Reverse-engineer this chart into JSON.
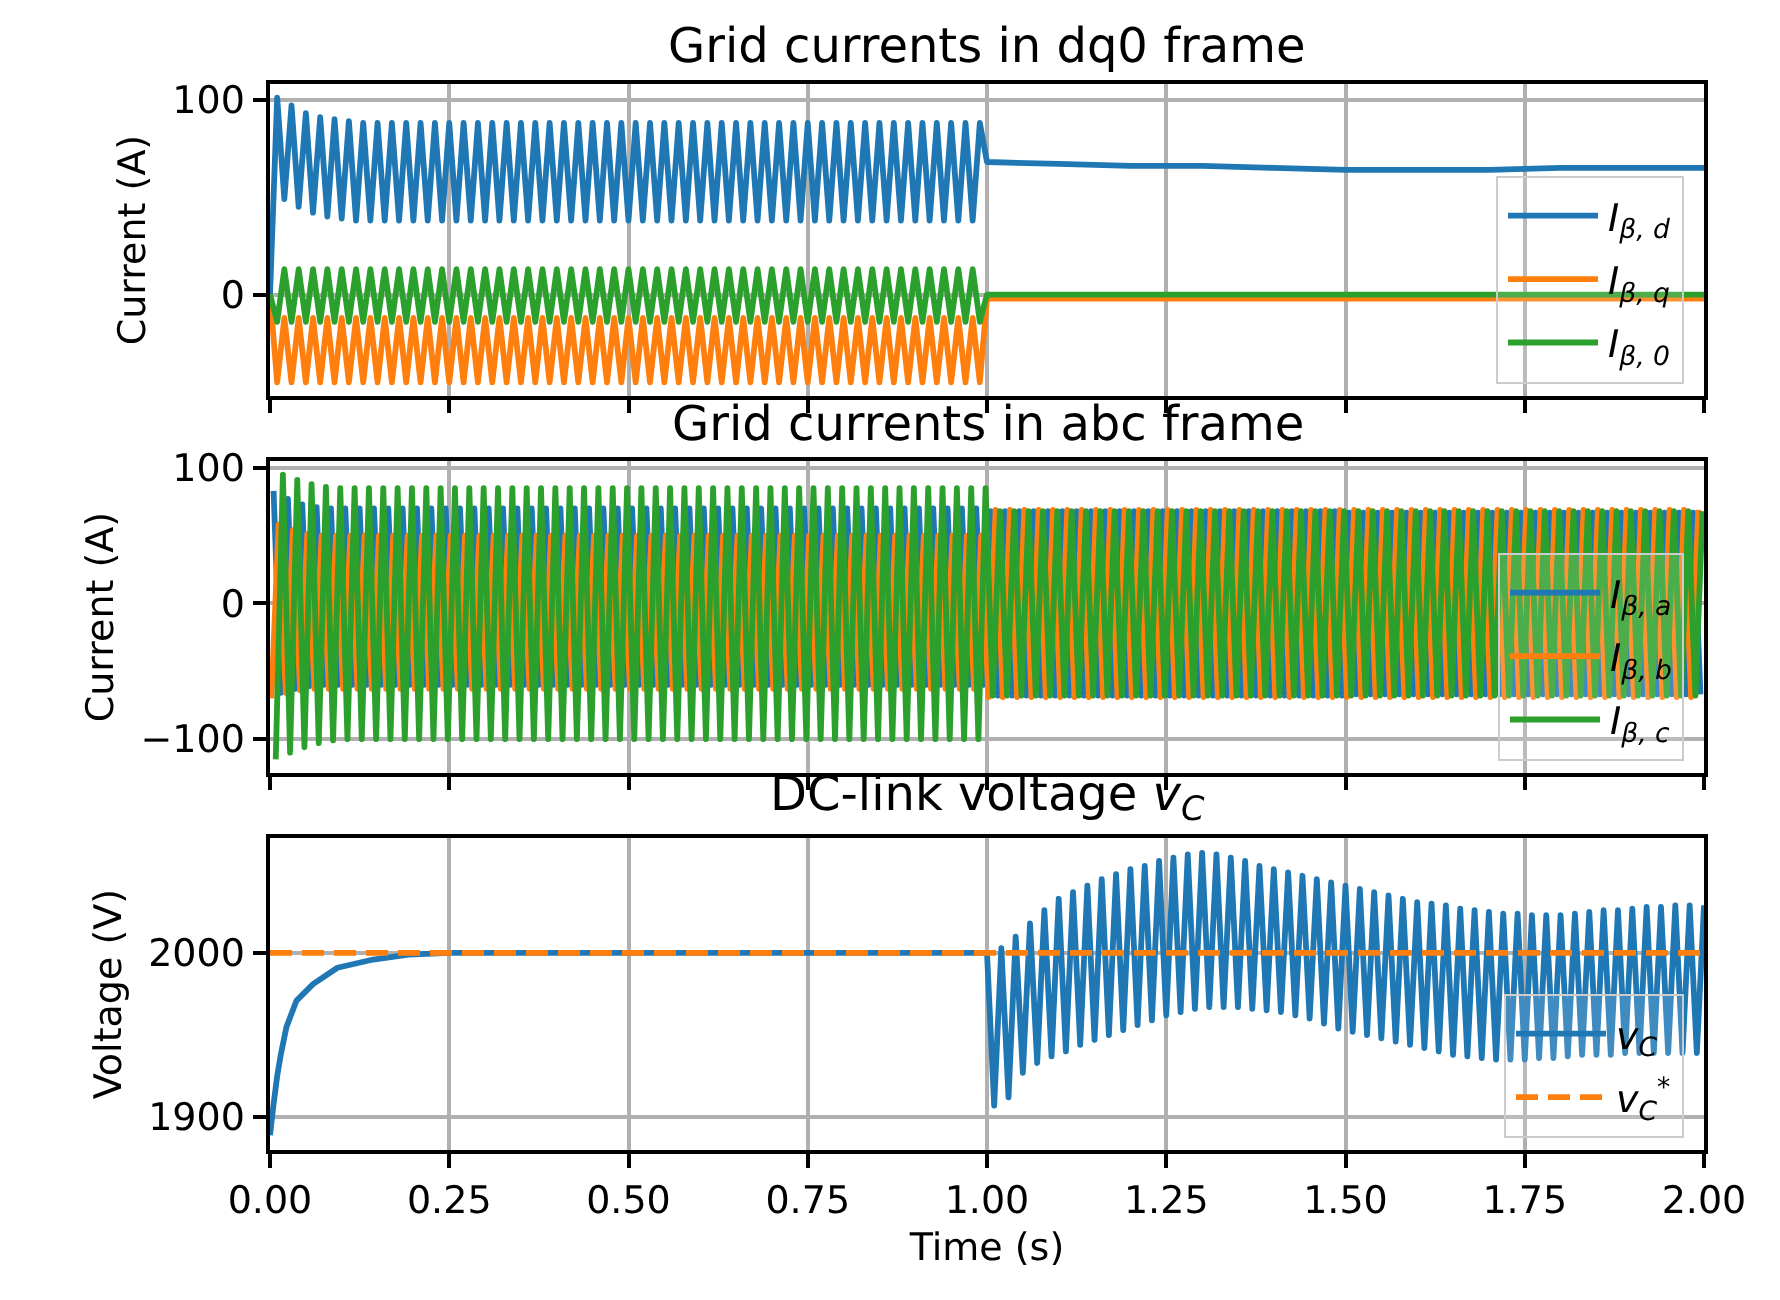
{
  "chart_data": [
    {
      "type": "line",
      "title": "Grid currents in dq0 frame",
      "ylabel": "Current (A)",
      "x": [
        0,
        0.01,
        0.02,
        0.03,
        0.04,
        0.05,
        0.06,
        0.07,
        0.08,
        0.09,
        0.1,
        0.11,
        0.12,
        0.13,
        0.14,
        0.15,
        0.16,
        0.17,
        0.18,
        0.19,
        0.2,
        0.21,
        0.22,
        0.23,
        0.24,
        0.25,
        0.26,
        0.27,
        0.28,
        0.29,
        0.3,
        0.31,
        0.32,
        0.33,
        0.34,
        0.35,
        0.36,
        0.37,
        0.38,
        0.39,
        0.4,
        0.41,
        0.42,
        0.43,
        0.44,
        0.45,
        0.46,
        0.47,
        0.48,
        0.49,
        0.5,
        0.51,
        0.52,
        0.53,
        0.54,
        0.55,
        0.56,
        0.57,
        0.58,
        0.59,
        0.6,
        0.61,
        0.62,
        0.63,
        0.64,
        0.65,
        0.66,
        0.67,
        0.68,
        0.69,
        0.7,
        0.71,
        0.72,
        0.73,
        0.74,
        0.75,
        0.76,
        0.77,
        0.78,
        0.79,
        0.8,
        0.81,
        0.82,
        0.83,
        0.84,
        0.85,
        0.86,
        0.87,
        0.88,
        0.89,
        0.9,
        0.91,
        0.92,
        0.93,
        0.94,
        0.95,
        0.96,
        0.97,
        0.98,
        0.99,
        1.0,
        1.1,
        1.2,
        1.3,
        1.4,
        1.5,
        1.6,
        1.7,
        1.8,
        1.9,
        2.0
      ],
      "series": [
        {
          "name": "I$_{β, d}$",
          "color": "#1f77b4",
          "values": [
            0,
            101,
            49,
            97,
            45,
            93,
            42,
            91,
            40,
            90,
            39,
            89,
            38,
            88,
            38,
            88,
            38,
            88,
            38,
            88,
            38,
            88,
            38,
            88,
            38,
            88,
            38,
            88,
            38,
            88,
            38,
            88,
            38,
            88,
            38,
            88,
            38,
            88,
            38,
            88,
            38,
            88,
            38,
            88,
            38,
            88,
            38,
            88,
            38,
            88,
            38,
            88,
            38,
            88,
            38,
            88,
            38,
            88,
            38,
            88,
            38,
            88,
            38,
            88,
            38,
            88,
            38,
            88,
            38,
            88,
            38,
            88,
            38,
            88,
            38,
            88,
            38,
            88,
            38,
            88,
            38,
            88,
            38,
            88,
            38,
            88,
            38,
            88,
            38,
            88,
            38,
            88,
            38,
            88,
            38,
            88,
            38,
            88,
            38,
            88,
            68,
            67,
            66,
            66,
            65,
            64,
            64,
            64,
            65,
            65,
            65
          ]
        },
        {
          "name": "I$_{β, q}$",
          "color": "#ff7f0e",
          "values": [
            0,
            -45,
            -12,
            -45,
            -12,
            -45,
            -12,
            -45,
            -12,
            -45,
            -12,
            -45,
            -12,
            -45,
            -12,
            -45,
            -12,
            -45,
            -12,
            -45,
            -12,
            -45,
            -12,
            -45,
            -12,
            -45,
            -12,
            -45,
            -12,
            -45,
            -12,
            -45,
            -12,
            -45,
            -12,
            -45,
            -12,
            -45,
            -12,
            -45,
            -12,
            -45,
            -12,
            -45,
            -12,
            -45,
            -12,
            -45,
            -12,
            -45,
            -12,
            -45,
            -12,
            -45,
            -12,
            -45,
            -12,
            -45,
            -12,
            -45,
            -12,
            -45,
            -12,
            -45,
            -12,
            -45,
            -12,
            -45,
            -12,
            -45,
            -12,
            -45,
            -12,
            -45,
            -12,
            -45,
            -12,
            -45,
            -12,
            -45,
            -12,
            -45,
            -12,
            -45,
            -12,
            -45,
            -12,
            -45,
            -12,
            -45,
            -12,
            -45,
            -12,
            -45,
            -12,
            -45,
            -12,
            -45,
            -12,
            -45,
            -2,
            -2,
            -2,
            -2,
            -2,
            -2,
            -2,
            -2,
            -2,
            -2,
            -2
          ]
        },
        {
          "name": "I$_{β, 0}$",
          "color": "#2ca02c",
          "values": [
            0,
            -14,
            13,
            -14,
            13,
            -14,
            13,
            -14,
            13,
            -14,
            13,
            -14,
            13,
            -14,
            13,
            -14,
            13,
            -14,
            13,
            -14,
            13,
            -14,
            13,
            -14,
            13,
            -14,
            13,
            -14,
            13,
            -14,
            13,
            -14,
            13,
            -14,
            13,
            -14,
            13,
            -14,
            13,
            -14,
            13,
            -14,
            13,
            -14,
            13,
            -14,
            13,
            -14,
            13,
            -14,
            13,
            -14,
            13,
            -14,
            13,
            -14,
            13,
            -14,
            13,
            -14,
            13,
            -14,
            13,
            -14,
            13,
            -14,
            13,
            -14,
            13,
            -14,
            13,
            -14,
            13,
            -14,
            13,
            -14,
            13,
            -14,
            13,
            -14,
            13,
            -14,
            13,
            -14,
            13,
            -14,
            13,
            -14,
            13,
            -14,
            13,
            -14,
            13,
            -14,
            13,
            -14,
            13,
            -14,
            13,
            -14,
            0,
            0,
            0,
            0,
            0,
            0,
            0,
            0,
            0,
            0,
            0
          ]
        }
      ],
      "xlim": [
        0,
        2
      ],
      "ylim": [
        -52,
        108
      ],
      "xticks": [
        0,
        0.25,
        0.5,
        0.75,
        1,
        1.25,
        1.5,
        1.75,
        2
      ],
      "yticks": [
        0,
        100
      ],
      "grid": true,
      "legend": "bottom right",
      "tick_labels": "y"
    },
    {
      "type": "line",
      "title": "Grid currents in abc frame",
      "ylabel": "Current (A)",
      "series": [
        {
          "name": "I$_{β, a}$",
          "color": "#1f77b4",
          "x": [
            0.005,
            0.015,
            0.025,
            0.035,
            0.045,
            0.055,
            0.065,
            0.075,
            0.085,
            0.095,
            0.105,
            0.115,
            0.125,
            0.135,
            0.145,
            0.155,
            0.165,
            0.175,
            0.185,
            0.195,
            0.205,
            0.215,
            0.225,
            0.235,
            0.245,
            0.255,
            0.265,
            0.275,
            0.285,
            0.295,
            0.305,
            0.315,
            0.325,
            0.335,
            0.345,
            0.355,
            0.365,
            0.375,
            0.385,
            0.395,
            0.405,
            0.415,
            0.425,
            0.435,
            0.445,
            0.455,
            0.465,
            0.475,
            0.485,
            0.495,
            0.505,
            0.515,
            0.525,
            0.535,
            0.545,
            0.555,
            0.565,
            0.575,
            0.585,
            0.595,
            0.605,
            0.615,
            0.625,
            0.635,
            0.645,
            0.655,
            0.665,
            0.675,
            0.685,
            0.695,
            0.705,
            0.715,
            0.725,
            0.735,
            0.745,
            0.755,
            0.765,
            0.775,
            0.785,
            0.795,
            0.805,
            0.815,
            0.825,
            0.835,
            0.845,
            0.855,
            0.865,
            0.875,
            0.885,
            0.895,
            0.905,
            0.915,
            0.925,
            0.935,
            0.945,
            0.955,
            0.965,
            0.975,
            0.985,
            0.995,
            1.005,
            1.015,
            1.025,
            1.035,
            1.045,
            1.055,
            1.065,
            1.075,
            1.085,
            1.095,
            1.105,
            1.115,
            1.125,
            1.135,
            1.145,
            1.155,
            1.165,
            1.175,
            1.185,
            1.195,
            1.205,
            1.215,
            1.225,
            1.235,
            1.245,
            1.255,
            1.265,
            1.275,
            1.285,
            1.295,
            1.305,
            1.315,
            1.325,
            1.335,
            1.345,
            1.355,
            1.365,
            1.375,
            1.385,
            1.395,
            1.405,
            1.415,
            1.425,
            1.435,
            1.445,
            1.455,
            1.465,
            1.475,
            1.485,
            1.495,
            1.505,
            1.515,
            1.525,
            1.535,
            1.545,
            1.555,
            1.565,
            1.575,
            1.585,
            1.595,
            1.605,
            1.615,
            1.625,
            1.635,
            1.645,
            1.655,
            1.665,
            1.675,
            1.685,
            1.695,
            1.705,
            1.715,
            1.725,
            1.735,
            1.745,
            1.755,
            1.765,
            1.775,
            1.785,
            1.795,
            1.805,
            1.815,
            1.825,
            1.835,
            1.845,
            1.855,
            1.865,
            1.875,
            1.885,
            1.895,
            1.905,
            1.915,
            1.925,
            1.935,
            1.945,
            1.955,
            1.965,
            1.975,
            1.985,
            1.995
          ],
          "values": [
            83,
            -66,
            77,
            -63,
            73,
            -61,
            71,
            -60,
            70,
            -60,
            70,
            -60,
            70,
            -60,
            70,
            -60,
            70,
            -60,
            70,
            -60,
            70,
            -60,
            70,
            -60,
            70,
            -60,
            70,
            -60,
            70,
            -60,
            70,
            -60,
            70,
            -60,
            70,
            -60,
            70,
            -60,
            70,
            -60,
            70,
            -60,
            70,
            -60,
            70,
            -60,
            70,
            -60,
            70,
            -60,
            70,
            -60,
            70,
            -60,
            70,
            -60,
            70,
            -60,
            70,
            -60,
            70,
            -60,
            70,
            -60,
            70,
            -60,
            70,
            -60,
            70,
            -60,
            70,
            -60,
            70,
            -60,
            70,
            -60,
            70,
            -60,
            70,
            -60,
            70,
            -60,
            70,
            -60,
            70,
            -60,
            70,
            -60,
            70,
            -60,
            70,
            -60,
            70,
            -60,
            70,
            -60,
            70,
            -60,
            70,
            -60,
            68,
            -68,
            68,
            -68,
            68,
            -68,
            68,
            -68,
            68,
            -68,
            68,
            -68,
            68,
            -68,
            68,
            -68,
            68,
            -68,
            68,
            -68,
            68,
            -68,
            68,
            -68,
            68,
            -68,
            68,
            -68,
            68,
            -68,
            68,
            -68,
            68,
            -68,
            68,
            -68,
            68,
            -68,
            68,
            -68,
            68,
            -68,
            68,
            -68,
            68,
            -68,
            68,
            -68,
            68,
            -68,
            67,
            -67,
            67,
            -67,
            67,
            -67,
            67,
            -67,
            67,
            -67,
            67,
            -67,
            67,
            -67,
            67,
            -67,
            67,
            -67,
            67,
            -67,
            67,
            -67,
            67,
            -67,
            67,
            -67,
            67,
            -67,
            67,
            -67,
            67,
            -67,
            67,
            -67,
            67,
            -67,
            67,
            -67,
            67,
            -67,
            67,
            -67,
            67,
            -67,
            67,
            -67,
            67,
            -67,
            67,
            -67
          ]
        },
        {
          "name": "I$_{β, b}$",
          "color": "#ff7f0e",
          "x": [
            0.002,
            0.012,
            0.022,
            0.032,
            0.042,
            0.052,
            0.062,
            0.072,
            0.082,
            0.092,
            0.102,
            0.112,
            0.122,
            0.132,
            0.142,
            0.152,
            0.162,
            0.172,
            0.182,
            0.192,
            0.202,
            0.212,
            0.222,
            0.232,
            0.242,
            0.252,
            0.262,
            0.272,
            0.282,
            0.292,
            0.302,
            0.312,
            0.322,
            0.332,
            0.342,
            0.352,
            0.362,
            0.372,
            0.382,
            0.392,
            0.402,
            0.412,
            0.422,
            0.432,
            0.442,
            0.452,
            0.462,
            0.472,
            0.482,
            0.492,
            0.502,
            0.512,
            0.522,
            0.532,
            0.542,
            0.552,
            0.562,
            0.572,
            0.582,
            0.592,
            0.602,
            0.612,
            0.622,
            0.632,
            0.642,
            0.652,
            0.662,
            0.672,
            0.682,
            0.692,
            0.702,
            0.712,
            0.722,
            0.732,
            0.742,
            0.752,
            0.762,
            0.772,
            0.782,
            0.792,
            0.802,
            0.812,
            0.822,
            0.832,
            0.842,
            0.852,
            0.862,
            0.872,
            0.882,
            0.892,
            0.902,
            0.912,
            0.922,
            0.932,
            0.942,
            0.952,
            0.962,
            0.972,
            0.982,
            0.992,
            1.002,
            1.012,
            1.022,
            1.032,
            1.042,
            1.052,
            1.062,
            1.072,
            1.082,
            1.092,
            1.102,
            1.112,
            1.122,
            1.132,
            1.142,
            1.152,
            1.162,
            1.172,
            1.182,
            1.192,
            1.202,
            1.212,
            1.222,
            1.232,
            1.242,
            1.252,
            1.262,
            1.272,
            1.282,
            1.292,
            1.302,
            1.312,
            1.322,
            1.332,
            1.342,
            1.352,
            1.362,
            1.372,
            1.382,
            1.392,
            1.402,
            1.412,
            1.422,
            1.432,
            1.442,
            1.452,
            1.462,
            1.472,
            1.482,
            1.492,
            1.502,
            1.512,
            1.522,
            1.532,
            1.542,
            1.552,
            1.562,
            1.572,
            1.582,
            1.592,
            1.602,
            1.612,
            1.622,
            1.632,
            1.642,
            1.652,
            1.662,
            1.672,
            1.682,
            1.692,
            1.702,
            1.712,
            1.722,
            1.732,
            1.742,
            1.752,
            1.762,
            1.772,
            1.782,
            1.792,
            1.802,
            1.812,
            1.822,
            1.832,
            1.842,
            1.852,
            1.862,
            1.872,
            1.882,
            1.892,
            1.902,
            1.912,
            1.922,
            1.932,
            1.942,
            1.952,
            1.962,
            1.972,
            1.982,
            1.992
          ],
          "values": [
            -70,
            58,
            -66,
            54,
            -64,
            51,
            -63,
            50,
            -63,
            50,
            -63,
            50,
            -63,
            50,
            -63,
            50,
            -63,
            50,
            -63,
            50,
            -63,
            50,
            -63,
            50,
            -63,
            50,
            -63,
            50,
            -63,
            50,
            -63,
            50,
            -63,
            50,
            -63,
            50,
            -63,
            50,
            -63,
            50,
            -63,
            50,
            -63,
            50,
            -63,
            50,
            -63,
            50,
            -63,
            50,
            -63,
            50,
            -63,
            50,
            -63,
            50,
            -63,
            50,
            -63,
            50,
            -63,
            50,
            -63,
            50,
            -63,
            50,
            -63,
            50,
            -63,
            50,
            -63,
            50,
            -63,
            50,
            -63,
            50,
            -63,
            50,
            -63,
            50,
            -63,
            50,
            -63,
            50,
            -63,
            50,
            -63,
            50,
            -63,
            50,
            -63,
            50,
            -63,
            50,
            -63,
            50,
            -63,
            50,
            -63,
            50,
            -69,
            69,
            -69,
            69,
            -69,
            69,
            -69,
            69,
            -69,
            69,
            -69,
            69,
            -69,
            69,
            -69,
            69,
            -69,
            69,
            -69,
            69,
            -69,
            69,
            -69,
            69,
            -69,
            69,
            -69,
            69,
            -69,
            69,
            -69,
            69,
            -69,
            69,
            -69,
            69,
            -69,
            69,
            -69,
            69,
            -69,
            69,
            -69,
            69,
            -69,
            69,
            -69,
            69,
            -69,
            69,
            -69,
            69,
            -69,
            69,
            -69,
            69,
            -69,
            69,
            -69,
            69,
            -69,
            69,
            -69,
            69,
            -69,
            69,
            -69,
            69,
            -69,
            69,
            -69,
            69,
            -69,
            69,
            -69,
            69,
            -69,
            69,
            -69,
            69,
            -69,
            69,
            -69,
            69,
            -69,
            69,
            -69,
            69,
            -69,
            69,
            -69,
            69,
            -69,
            69,
            -69,
            69,
            -69,
            69,
            -69,
            69
          ]
        },
        {
          "name": "I$_{β, c}$",
          "color": "#2ca02c",
          "x": [
            0.008,
            0.018,
            0.028,
            0.038,
            0.048,
            0.058,
            0.068,
            0.078,
            0.088,
            0.098,
            0.108,
            0.118,
            0.128,
            0.138,
            0.148,
            0.158,
            0.168,
            0.178,
            0.188,
            0.198,
            0.208,
            0.218,
            0.228,
            0.238,
            0.248,
            0.258,
            0.268,
            0.278,
            0.288,
            0.298,
            0.308,
            0.318,
            0.328,
            0.338,
            0.348,
            0.358,
            0.368,
            0.378,
            0.388,
            0.398,
            0.408,
            0.418,
            0.428,
            0.438,
            0.448,
            0.458,
            0.468,
            0.478,
            0.488,
            0.498,
            0.508,
            0.518,
            0.528,
            0.538,
            0.548,
            0.558,
            0.568,
            0.578,
            0.588,
            0.598,
            0.608,
            0.618,
            0.628,
            0.638,
            0.648,
            0.658,
            0.668,
            0.678,
            0.688,
            0.698,
            0.708,
            0.718,
            0.728,
            0.738,
            0.748,
            0.758,
            0.768,
            0.778,
            0.788,
            0.798,
            0.808,
            0.818,
            0.828,
            0.838,
            0.848,
            0.858,
            0.868,
            0.878,
            0.888,
            0.898,
            0.908,
            0.918,
            0.928,
            0.938,
            0.948,
            0.958,
            0.968,
            0.978,
            0.988,
            0.998,
            1.008,
            1.018,
            1.028,
            1.038,
            1.048,
            1.058,
            1.068,
            1.078,
            1.088,
            1.098,
            1.108,
            1.118,
            1.128,
            1.138,
            1.148,
            1.158,
            1.168,
            1.178,
            1.188,
            1.198,
            1.208,
            1.218,
            1.228,
            1.238,
            1.248,
            1.258,
            1.268,
            1.278,
            1.288,
            1.298,
            1.308,
            1.318,
            1.328,
            1.338,
            1.348,
            1.358,
            1.368,
            1.378,
            1.388,
            1.398,
            1.408,
            1.418,
            1.428,
            1.438,
            1.448,
            1.458,
            1.468,
            1.478,
            1.488,
            1.498,
            1.508,
            1.518,
            1.528,
            1.538,
            1.548,
            1.558,
            1.568,
            1.578,
            1.588,
            1.598,
            1.608,
            1.618,
            1.628,
            1.638,
            1.648,
            1.658,
            1.668,
            1.678,
            1.688,
            1.698,
            1.708,
            1.718,
            1.728,
            1.738,
            1.748,
            1.758,
            1.768,
            1.778,
            1.788,
            1.798,
            1.808,
            1.818,
            1.828,
            1.838,
            1.848,
            1.858,
            1.868,
            1.878,
            1.888,
            1.898,
            1.908,
            1.918,
            1.928,
            1.938,
            1.948,
            1.958,
            1.968,
            1.978,
            1.988,
            1.998
          ],
          "values": [
            -115,
            95,
            -110,
            91,
            -106,
            88,
            -103,
            86,
            -101,
            85,
            -100,
            85,
            -100,
            85,
            -100,
            85,
            -100,
            85,
            -100,
            85,
            -100,
            85,
            -100,
            85,
            -100,
            85,
            -100,
            85,
            -100,
            85,
            -100,
            85,
            -100,
            85,
            -100,
            85,
            -100,
            85,
            -100,
            85,
            -100,
            85,
            -100,
            85,
            -100,
            85,
            -100,
            85,
            -100,
            85,
            -100,
            85,
            -100,
            85,
            -100,
            85,
            -100,
            85,
            -100,
            85,
            -100,
            85,
            -100,
            85,
            -100,
            85,
            -100,
            85,
            -100,
            85,
            -100,
            85,
            -100,
            85,
            -100,
            85,
            -100,
            85,
            -100,
            85,
            -100,
            85,
            -100,
            85,
            -100,
            85,
            -100,
            85,
            -100,
            85,
            -100,
            85,
            -100,
            85,
            -100,
            85,
            -100,
            85,
            -100,
            85,
            -68,
            68,
            -68,
            68,
            -68,
            68,
            -68,
            68,
            -68,
            68,
            -68,
            68,
            -68,
            68,
            -68,
            68,
            -68,
            68,
            -68,
            68,
            -68,
            68,
            -68,
            68,
            -68,
            68,
            -68,
            68,
            -68,
            68,
            -68,
            68,
            -68,
            68,
            -68,
            68,
            -68,
            68,
            -68,
            68,
            -68,
            68,
            -68,
            68,
            -68,
            68,
            -68,
            68,
            -68,
            68,
            -68,
            68,
            -68,
            68,
            -68,
            68,
            -68,
            68,
            -68,
            68,
            -68,
            68,
            -68,
            68,
            -68,
            68,
            -68,
            68,
            -68,
            68,
            -68,
            68,
            -68,
            68,
            -68,
            68,
            -68,
            68,
            -68,
            68,
            -68,
            68,
            -68,
            68,
            -68,
            68,
            -68,
            68,
            -68,
            68,
            -68,
            68,
            -68,
            68,
            -68,
            68,
            -68,
            68,
            -68,
            68
          ]
        }
      ],
      "xlim": [
        0,
        2
      ],
      "ylim": [
        -125,
        105
      ],
      "xticks": [
        0,
        0.25,
        0.5,
        0.75,
        1,
        1.25,
        1.5,
        1.75,
        2
      ],
      "yticks": [
        {
          "value": -100,
          "label": "−100"
        },
        0,
        100
      ],
      "grid": true,
      "legend": "bottom right",
      "tick_labels": "y"
    },
    {
      "type": "line",
      "title": "DC-link voltage v$_{C}$",
      "xlabel": "Time (s)",
      "ylabel": "Voltage (V)",
      "series": [
        {
          "name": "v$_{C}$",
          "color": "#1f77b4",
          "x": [
            0,
            0.005,
            0.01,
            0.015,
            0.023,
            0.037,
            0.06,
            0.094,
            0.144,
            0.193,
            0.25,
            1.0,
            1.01,
            1.02,
            1.03,
            1.04,
            1.05,
            1.06,
            1.07,
            1.08,
            1.09,
            1.1,
            1.11,
            1.12,
            1.13,
            1.14,
            1.15,
            1.16,
            1.17,
            1.18,
            1.19,
            1.2,
            1.21,
            1.22,
            1.23,
            1.24,
            1.25,
            1.26,
            1.27,
            1.28,
            1.29,
            1.3,
            1.31,
            1.32,
            1.33,
            1.34,
            1.35,
            1.36,
            1.37,
            1.38,
            1.39,
            1.4,
            1.41,
            1.42,
            1.43,
            1.44,
            1.45,
            1.46,
            1.47,
            1.48,
            1.49,
            1.5,
            1.51,
            1.52,
            1.53,
            1.54,
            1.55,
            1.56,
            1.57,
            1.58,
            1.59,
            1.6,
            1.61,
            1.62,
            1.63,
            1.64,
            1.65,
            1.66,
            1.67,
            1.68,
            1.69,
            1.7,
            1.71,
            1.72,
            1.73,
            1.74,
            1.75,
            1.76,
            1.77,
            1.78,
            1.79,
            1.8,
            1.81,
            1.82,
            1.83,
            1.84,
            1.85,
            1.86,
            1.87,
            1.88,
            1.89,
            1.9,
            1.91,
            1.92,
            1.93,
            1.94,
            1.95,
            1.96,
            1.97,
            1.98,
            1.99,
            2.0
          ],
          "values": [
            1889,
            1908,
            1925,
            1938,
            1955,
            1971,
            1981,
            1991,
            1996,
            1999,
            2000,
            2000,
            1907,
            2003,
            1912,
            2010,
            1927,
            2018,
            1933,
            2026,
            1937,
            2033,
            1940,
            2037,
            1944,
            2041,
            1947,
            2045,
            1950,
            2048,
            1953,
            2051,
            1956,
            2053,
            1959,
            2056,
            1962,
            2058,
            1964,
            2060,
            1966,
            2061,
            1967,
            2060,
            1967,
            2058,
            1967,
            2056,
            1966,
            2053,
            1965,
            2051,
            1964,
            2049,
            1962,
            2047,
            1960,
            2045,
            1957,
            2043,
            1954,
            2041,
            1952,
            2039,
            1950,
            2037,
            1948,
            2035,
            1946,
            2033,
            1944,
            2031,
            1942,
            2030,
            1940,
            2029,
            1938,
            2027,
            1937,
            2026,
            1936,
            2025,
            1935,
            2024,
            1935,
            2024,
            1935,
            2023,
            1936,
            2023,
            1936,
            2023,
            1937,
            2024,
            1938,
            2025,
            1938,
            2026,
            1938,
            2026,
            1939,
            2027,
            1939,
            2028,
            1939,
            2028,
            1939,
            2029,
            1939,
            2029,
            1939,
            2029
          ]
        },
        {
          "name": "v$_{C}$$^{*}$",
          "color": "#ff7f0e",
          "line_style": "dashed",
          "x": [
            0,
            2
          ],
          "values": [
            2000,
            2000
          ]
        }
      ],
      "xlim": [
        0,
        2
      ],
      "ylim": [
        1880,
        2070
      ],
      "xticks": [
        {
          "value": 0,
          "label": "0.00"
        },
        {
          "value": 0.25,
          "label": "0.25"
        },
        {
          "value": 0.5,
          "label": "0.50"
        },
        {
          "value": 0.75,
          "label": "0.75"
        },
        {
          "value": 1,
          "label": "1.00"
        },
        {
          "value": 1.25,
          "label": "1.25"
        },
        {
          "value": 1.5,
          "label": "1.50"
        },
        {
          "value": 1.75,
          "label": "1.75"
        },
        {
          "value": 2,
          "label": "2.00"
        }
      ],
      "yticks": [
        1900,
        2000
      ],
      "grid": true,
      "legend": "bottom right"
    }
  ]
}
